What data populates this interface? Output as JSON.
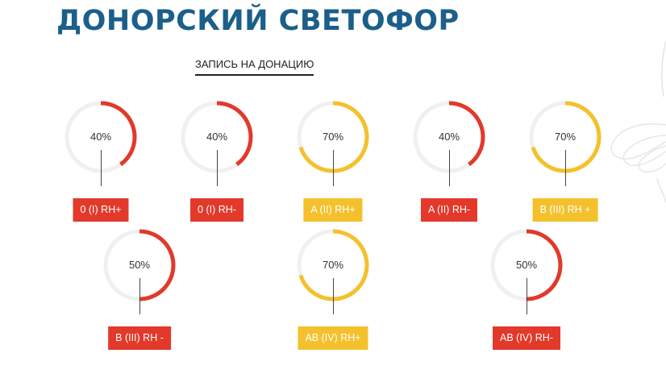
{
  "page": {
    "title": "ДОНОРСКИЙ СВЕТОФОР"
  },
  "link": {
    "label": "ЗАПИСЬ НА ДОНАЦИЮ"
  },
  "colors": {
    "title": "#1b5f8a",
    "red": "#e2392b",
    "yellow": "#f4c12c",
    "track": "#f0f0f0"
  },
  "groups": [
    {
      "label": "0 (I) RH+",
      "percent_text": "40%",
      "level": 40,
      "status": "red"
    },
    {
      "label": "0 (I) RH-",
      "percent_text": "40%",
      "level": 40,
      "status": "red"
    },
    {
      "label": "A (II) RH+",
      "percent_text": "70%",
      "level": 70,
      "status": "yellow"
    },
    {
      "label": "A (II) RH-",
      "percent_text": "40%",
      "level": 40,
      "status": "red"
    },
    {
      "label": "B (III) RH +",
      "percent_text": "70%",
      "level": 70,
      "status": "yellow"
    },
    {
      "label": "B (III) RH -",
      "percent_text": "50%",
      "level": 50,
      "status": "red"
    },
    {
      "label": "AB (IV) RH+",
      "percent_text": "70%",
      "level": 70,
      "status": "yellow"
    },
    {
      "label": "AB (IV) RH-",
      "percent_text": "50%",
      "level": 50,
      "status": "red"
    }
  ]
}
